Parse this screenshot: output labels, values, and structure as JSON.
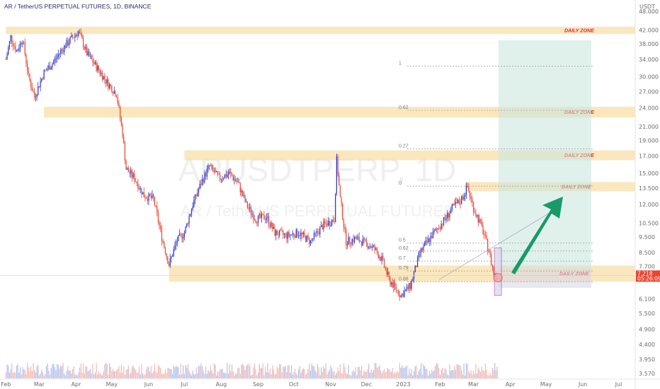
{
  "chart_data": {
    "type": "candlestick",
    "title": "AR / TetherUS PERPETUAL FUTURES, 1D, BINANCE",
    "watermark_symbol": "ARUSDTPERP, 1D",
    "watermark_name": "AR / TetherUS PERPETUAL FUTURES",
    "y_unit": "USDT",
    "y_scale": "log",
    "ylim": [
      3.5,
      50
    ],
    "y_ticks": [
      "48.000",
      "42.000",
      "38.000",
      "34.000",
      "30.000",
      "27.000",
      "24.000",
      "21.000",
      "19.000",
      "17.000",
      "15.000",
      "13.500",
      "12.000",
      "10.500",
      "9.500",
      "8.500",
      "7.700",
      "7.218",
      "6.100",
      "5.500",
      "4.900",
      "4.400",
      "3.950",
      "3.570"
    ],
    "x_ticks": [
      "Feb",
      "Mar",
      "Apr",
      "May",
      "Jun",
      "Jul",
      "Aug",
      "Sep",
      "Oct",
      "Nov",
      "Dec",
      "2023",
      "Feb",
      "Mar",
      "Apr",
      "May",
      "Jun",
      "Jul"
    ],
    "last_price": "7.218",
    "countdown": "05:26:09",
    "daily_zone_label": "DAILY ZONE",
    "zones": [
      {
        "label": "DAILY ZONE",
        "from": 40.8,
        "to": 43.0
      },
      {
        "label": "DAILY ZONE",
        "from": 22.4,
        "to": 24.2
      },
      {
        "label": "DAILY ZONE",
        "from": 16.5,
        "to": 17.7
      },
      {
        "label": "DAILY ZONE",
        "from": 13.2,
        "to": 14.1
      },
      {
        "label": "DAILY ZONE",
        "from": 6.9,
        "to": 7.75
      }
    ],
    "fib_levels": [
      {
        "label": "1",
        "price": 32.4
      },
      {
        "label": "0.62",
        "price": 23.6
      },
      {
        "label": "0.27",
        "price": 17.9
      },
      {
        "label": "0",
        "price": 13.7
      },
      {
        "label": "0.5",
        "price": 9.1
      },
      {
        "label": "0.62",
        "price": 8.6
      },
      {
        "label": "0.7",
        "price": 8.0
      },
      {
        "label": "0.79",
        "price": 7.45
      },
      {
        "label": "0.88",
        "price": 6.9
      }
    ],
    "trade_box": {
      "target": 39.0,
      "entry": 7.6,
      "stop": 6.6
    },
    "price_path": [
      {
        "x": "2022-02-01",
        "y": 34.0
      },
      {
        "x": "2022-02-05",
        "y": 40.0
      },
      {
        "x": "2022-02-10",
        "y": 36.0
      },
      {
        "x": "2022-02-15",
        "y": 39.5
      },
      {
        "x": "2022-02-20",
        "y": 30.0
      },
      {
        "x": "2022-02-25",
        "y": 26.0
      },
      {
        "x": "2022-03-05",
        "y": 31.0
      },
      {
        "x": "2022-03-12",
        "y": 33.0
      },
      {
        "x": "2022-03-20",
        "y": 36.5
      },
      {
        "x": "2022-03-28",
        "y": 39.5
      },
      {
        "x": "2022-04-03",
        "y": 41.5
      },
      {
        "x": "2022-04-10",
        "y": 35.5
      },
      {
        "x": "2022-04-20",
        "y": 31.5
      },
      {
        "x": "2022-04-28",
        "y": 28.5
      },
      {
        "x": "2022-05-05",
        "y": 26.5
      },
      {
        "x": "2022-05-10",
        "y": 20.0
      },
      {
        "x": "2022-05-13",
        "y": 15.5
      },
      {
        "x": "2022-05-20",
        "y": 14.5
      },
      {
        "x": "2022-05-28",
        "y": 12.8
      },
      {
        "x": "2022-06-05",
        "y": 12.5
      },
      {
        "x": "2022-06-12",
        "y": 9.5
      },
      {
        "x": "2022-06-18",
        "y": 7.8
      },
      {
        "x": "2022-06-25",
        "y": 9.3
      },
      {
        "x": "2022-07-01",
        "y": 9.8
      },
      {
        "x": "2022-07-08",
        "y": 12.0
      },
      {
        "x": "2022-07-15",
        "y": 14.0
      },
      {
        "x": "2022-07-22",
        "y": 15.8
      },
      {
        "x": "2022-07-30",
        "y": 14.5
      },
      {
        "x": "2022-08-08",
        "y": 15.0
      },
      {
        "x": "2022-08-15",
        "y": 14.0
      },
      {
        "x": "2022-08-22",
        "y": 12.0
      },
      {
        "x": "2022-08-30",
        "y": 10.8
      },
      {
        "x": "2022-09-08",
        "y": 11.0
      },
      {
        "x": "2022-09-15",
        "y": 9.8
      },
      {
        "x": "2022-09-25",
        "y": 9.6
      },
      {
        "x": "2022-10-05",
        "y": 9.8
      },
      {
        "x": "2022-10-15",
        "y": 9.2
      },
      {
        "x": "2022-10-25",
        "y": 10.3
      },
      {
        "x": "2022-11-04",
        "y": 10.8
      },
      {
        "x": "2022-11-06",
        "y": 16.5
      },
      {
        "x": "2022-11-09",
        "y": 12.5
      },
      {
        "x": "2022-11-14",
        "y": 9.2
      },
      {
        "x": "2022-11-22",
        "y": 9.4
      },
      {
        "x": "2022-11-30",
        "y": 9.1
      },
      {
        "x": "2022-12-07",
        "y": 8.8
      },
      {
        "x": "2022-12-14",
        "y": 8.1
      },
      {
        "x": "2022-12-20",
        "y": 7.0
      },
      {
        "x": "2022-12-30",
        "y": 6.25
      },
      {
        "x": "2023-01-07",
        "y": 6.7
      },
      {
        "x": "2023-01-15",
        "y": 8.5
      },
      {
        "x": "2023-01-25",
        "y": 9.6
      },
      {
        "x": "2023-02-05",
        "y": 10.8
      },
      {
        "x": "2023-02-12",
        "y": 11.8
      },
      {
        "x": "2023-02-18",
        "y": 12.3
      },
      {
        "x": "2023-02-24",
        "y": 13.6
      },
      {
        "x": "2023-03-01",
        "y": 11.7
      },
      {
        "x": "2023-03-08",
        "y": 10.2
      },
      {
        "x": "2023-03-14",
        "y": 8.6
      },
      {
        "x": "2023-03-18",
        "y": 7.3
      },
      {
        "x": "2023-03-21",
        "y": 7.218
      }
    ]
  }
}
